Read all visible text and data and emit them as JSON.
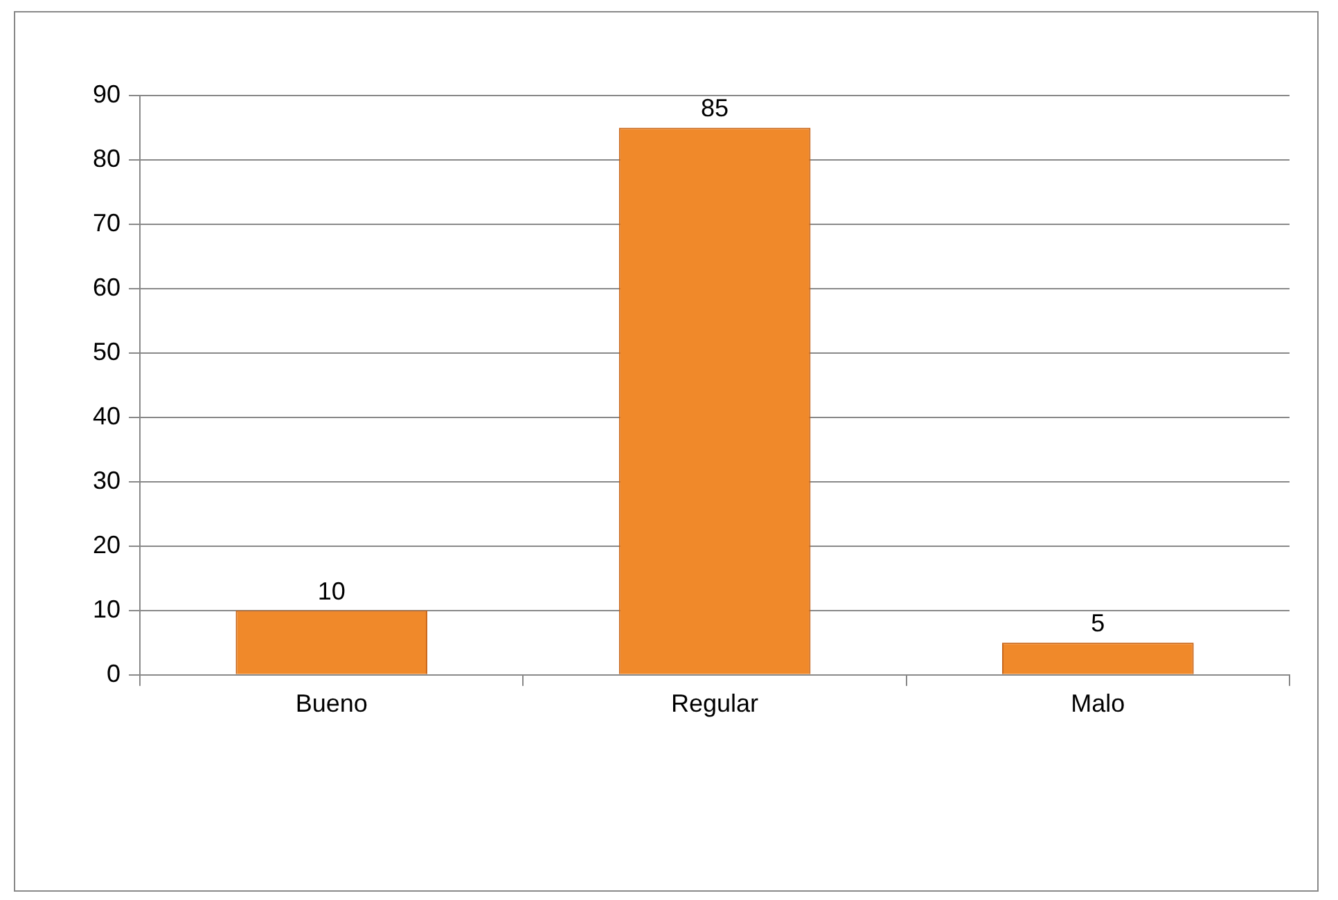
{
  "chart_data": {
    "type": "bar",
    "categories": [
      "Bueno",
      "Regular",
      "Malo"
    ],
    "values": [
      10,
      85,
      5
    ],
    "color": "#f0892a",
    "ylim": [
      0,
      90
    ],
    "yticks": [
      0,
      10,
      20,
      30,
      40,
      50,
      60,
      70,
      80,
      90
    ],
    "grid": "y",
    "data_labels": true,
    "legend": false
  }
}
